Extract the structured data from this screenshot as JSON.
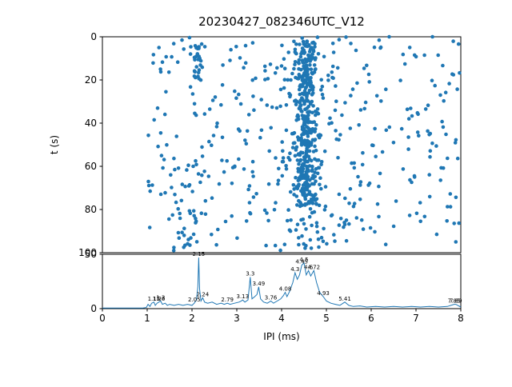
{
  "title": "20230427_082346UTC_V12",
  "colors": {
    "accent": "#1f77b4",
    "axis": "#000000",
    "background": "#ffffff"
  },
  "chart_data": [
    {
      "type": "scatter",
      "title": "20230427_082346UTC_V12",
      "xlabel": "",
      "ylabel": "t (s)",
      "xlim": [
        0,
        8
      ],
      "ylim": [
        0,
        100
      ],
      "y_inverted": true,
      "yticks": [
        0,
        20,
        40,
        60,
        80,
        100
      ],
      "grid": false,
      "legend": "none",
      "marker_color": "#1f77b4",
      "marker_radius": 2.3,
      "seed": 42,
      "point_clusters": [
        {
          "kind": "uniform",
          "x_min": 1.0,
          "x_max": 8.0,
          "t_min": 0,
          "t_max": 97,
          "n": 380
        },
        {
          "kind": "gaussian_x",
          "x_mean": 4.55,
          "x_sd": 0.12,
          "t_min": 2,
          "t_max": 78,
          "n": 330
        },
        {
          "kind": "gaussian_x",
          "x_mean": 4.5,
          "x_sd": 0.35,
          "t_min": 0,
          "t_max": 100,
          "n": 130
        },
        {
          "kind": "uniform",
          "x_min": 2.05,
          "x_max": 2.2,
          "t_min": 3,
          "t_max": 22,
          "n": 25
        },
        {
          "kind": "uniform",
          "x_min": 1.55,
          "x_max": 2.1,
          "t_min": 55,
          "t_max": 100,
          "n": 30
        }
      ]
    },
    {
      "type": "line",
      "xlabel": "IPI (ms)",
      "ylabel": "",
      "xlim": [
        0,
        8
      ],
      "ylim": [
        0,
        50
      ],
      "yticks": [
        0,
        50
      ],
      "xticks": [
        0,
        1,
        2,
        3,
        4,
        5,
        6,
        7,
        8
      ],
      "grid": false,
      "legend": "none",
      "line_color": "#1f77b4",
      "points": [
        [
          0,
          0.5
        ],
        [
          0.5,
          0.5
        ],
        [
          0.9,
          0.6
        ],
        [
          0.98,
          1
        ],
        [
          1.02,
          4
        ],
        [
          1.06,
          2
        ],
        [
          1.1,
          5
        ],
        [
          1.15,
          6
        ],
        [
          1.18,
          3
        ],
        [
          1.22,
          5
        ],
        [
          1.26,
          6
        ],
        [
          1.3,
          7
        ],
        [
          1.34,
          4
        ],
        [
          1.4,
          5
        ],
        [
          1.45,
          3
        ],
        [
          1.5,
          4
        ],
        [
          1.6,
          3
        ],
        [
          1.7,
          4
        ],
        [
          1.8,
          3
        ],
        [
          1.9,
          4
        ],
        [
          2.0,
          3
        ],
        [
          2.05,
          5
        ],
        [
          2.1,
          8
        ],
        [
          2.13,
          20
        ],
        [
          2.15,
          47
        ],
        [
          2.17,
          18
        ],
        [
          2.2,
          7
        ],
        [
          2.24,
          10
        ],
        [
          2.28,
          6
        ],
        [
          2.35,
          5
        ],
        [
          2.45,
          6
        ],
        [
          2.55,
          4
        ],
        [
          2.65,
          5
        ],
        [
          2.72,
          4
        ],
        [
          2.79,
          5
        ],
        [
          2.85,
          4
        ],
        [
          2.95,
          5
        ],
        [
          3.05,
          6
        ],
        [
          3.1,
          7
        ],
        [
          3.13,
          8
        ],
        [
          3.18,
          6
        ],
        [
          3.25,
          8
        ],
        [
          3.3,
          29
        ],
        [
          3.34,
          9
        ],
        [
          3.4,
          11
        ],
        [
          3.45,
          13
        ],
        [
          3.49,
          20
        ],
        [
          3.53,
          9
        ],
        [
          3.6,
          6
        ],
        [
          3.68,
          5
        ],
        [
          3.76,
          7
        ],
        [
          3.82,
          5
        ],
        [
          3.9,
          7
        ],
        [
          3.98,
          9
        ],
        [
          4.04,
          12
        ],
        [
          4.08,
          15
        ],
        [
          4.12,
          11
        ],
        [
          4.18,
          16
        ],
        [
          4.25,
          24
        ],
        [
          4.3,
          33
        ],
        [
          4.35,
          27
        ],
        [
          4.4,
          31
        ],
        [
          4.45,
          40
        ],
        [
          4.5,
          42
        ],
        [
          4.55,
          31
        ],
        [
          4.6,
          35
        ],
        [
          4.65,
          30
        ],
        [
          4.72,
          35
        ],
        [
          4.78,
          24
        ],
        [
          4.85,
          15
        ],
        [
          4.93,
          11
        ],
        [
          5.0,
          7
        ],
        [
          5.1,
          5
        ],
        [
          5.2,
          4
        ],
        [
          5.3,
          3
        ],
        [
          5.41,
          6
        ],
        [
          5.5,
          3
        ],
        [
          5.6,
          2
        ],
        [
          5.75,
          2.5
        ],
        [
          5.9,
          1.5
        ],
        [
          6.1,
          2
        ],
        [
          6.3,
          1.5
        ],
        [
          6.5,
          2
        ],
        [
          6.7,
          1.5
        ],
        [
          6.9,
          2
        ],
        [
          7.1,
          1.5
        ],
        [
          7.3,
          2
        ],
        [
          7.5,
          1.5
        ],
        [
          7.7,
          2
        ],
        [
          7.85,
          4
        ],
        [
          7.89,
          4
        ],
        [
          8.0,
          1.5
        ]
      ],
      "annotations": [
        {
          "label": "1.15",
          "x": 1.15,
          "y": 6
        },
        {
          "label": "1.26",
          "x": 1.26,
          "y": 6
        },
        {
          "label": "1.3",
          "x": 1.3,
          "y": 7
        },
        {
          "label": "2.05",
          "x": 2.05,
          "y": 5
        },
        {
          "label": "2.15",
          "x": 2.15,
          "y": 47
        },
        {
          "label": "2.24",
          "x": 2.24,
          "y": 10
        },
        {
          "label": "2.79",
          "x": 2.79,
          "y": 5
        },
        {
          "label": "3.13",
          "x": 3.13,
          "y": 8
        },
        {
          "label": "3.3",
          "x": 3.3,
          "y": 29
        },
        {
          "label": "3.49",
          "x": 3.49,
          "y": 20
        },
        {
          "label": "3.76",
          "x": 3.76,
          "y": 7
        },
        {
          "label": "4.08",
          "x": 4.08,
          "y": 15
        },
        {
          "label": "4.3",
          "x": 4.3,
          "y": 33
        },
        {
          "label": "4.45",
          "x": 4.45,
          "y": 40
        },
        {
          "label": "4.5",
          "x": 4.5,
          "y": 42
        },
        {
          "label": "4.6",
          "x": 4.6,
          "y": 35
        },
        {
          "label": "4.72",
          "x": 4.72,
          "y": 35
        },
        {
          "label": "4.93",
          "x": 4.93,
          "y": 11
        },
        {
          "label": "5.41",
          "x": 5.41,
          "y": 6
        },
        {
          "label": "7.85",
          "x": 7.85,
          "y": 4
        },
        {
          "label": "7.89",
          "x": 7.89,
          "y": 4
        }
      ]
    }
  ]
}
